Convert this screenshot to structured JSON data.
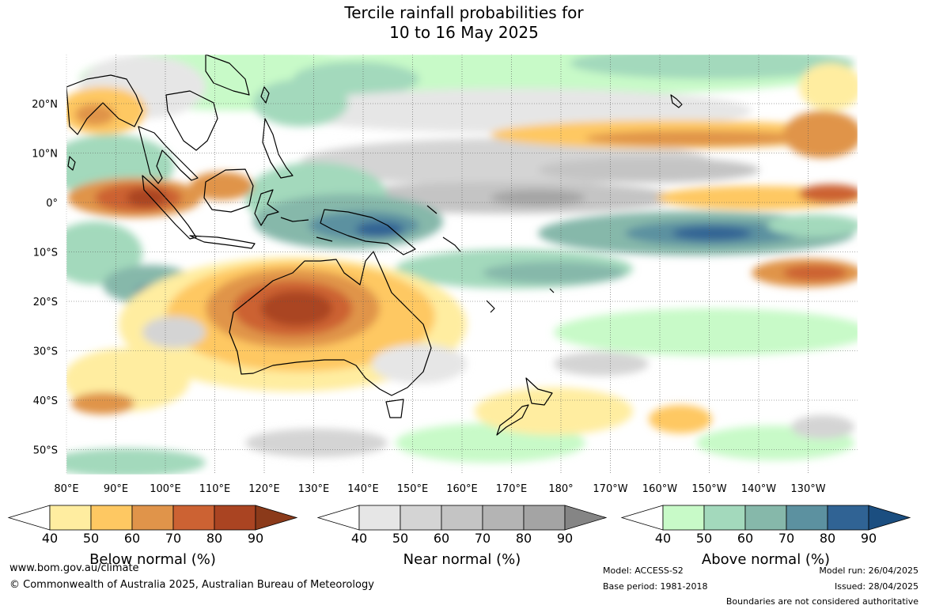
{
  "title": {
    "line1": "Tercile rainfall probabilities for",
    "line2": "10 to 16 May 2025"
  },
  "map": {
    "lat_labels": [
      "20°N",
      "10°N",
      "0°",
      "10°S",
      "20°S",
      "30°S",
      "40°S",
      "50°S"
    ],
    "lon_labels": [
      "80°E",
      "90°E",
      "100°E",
      "110°E",
      "120°E",
      "130°E",
      "140°E",
      "150°E",
      "160°E",
      "170°E",
      "180°",
      "170°W",
      "160°W",
      "150°W",
      "140°W",
      "130°W"
    ]
  },
  "colorbars": [
    {
      "id": "below",
      "label": "Below normal (%)",
      "ticks": [
        "40",
        "50",
        "60",
        "70",
        "80",
        "90"
      ],
      "colors": [
        "#ffeda0",
        "#fec862",
        "#e0944a",
        "#cc6233",
        "#aa4422",
        "#8b3a1a"
      ]
    },
    {
      "id": "near",
      "label": "Near normal (%)",
      "ticks": [
        "40",
        "50",
        "60",
        "70",
        "80",
        "90"
      ],
      "colors": [
        "#e6e6e6",
        "#d4d4d4",
        "#c4c4c4",
        "#b4b4b4",
        "#a4a4a4",
        "#858585"
      ]
    },
    {
      "id": "above",
      "label": "Above normal (%)",
      "ticks": [
        "40",
        "50",
        "60",
        "70",
        "80",
        "90"
      ],
      "colors": [
        "#c8fac8",
        "#a3d9bc",
        "#86b8aa",
        "#5c91a0",
        "#306394",
        "#1b4e80"
      ]
    }
  ],
  "footer": {
    "website": "www.bom.gov.au/climate",
    "copyright": "© Commonwealth of Australia 2025, Australian Bureau of Meteorology",
    "model": "Model: ACCESS-S2",
    "base_period": "Base period: 1981-2018",
    "model_run": "Model run: 26/04/2025",
    "issued": "Issued: 28/04/2025",
    "disclaimer": "Boundaries are not considered authoritative"
  }
}
